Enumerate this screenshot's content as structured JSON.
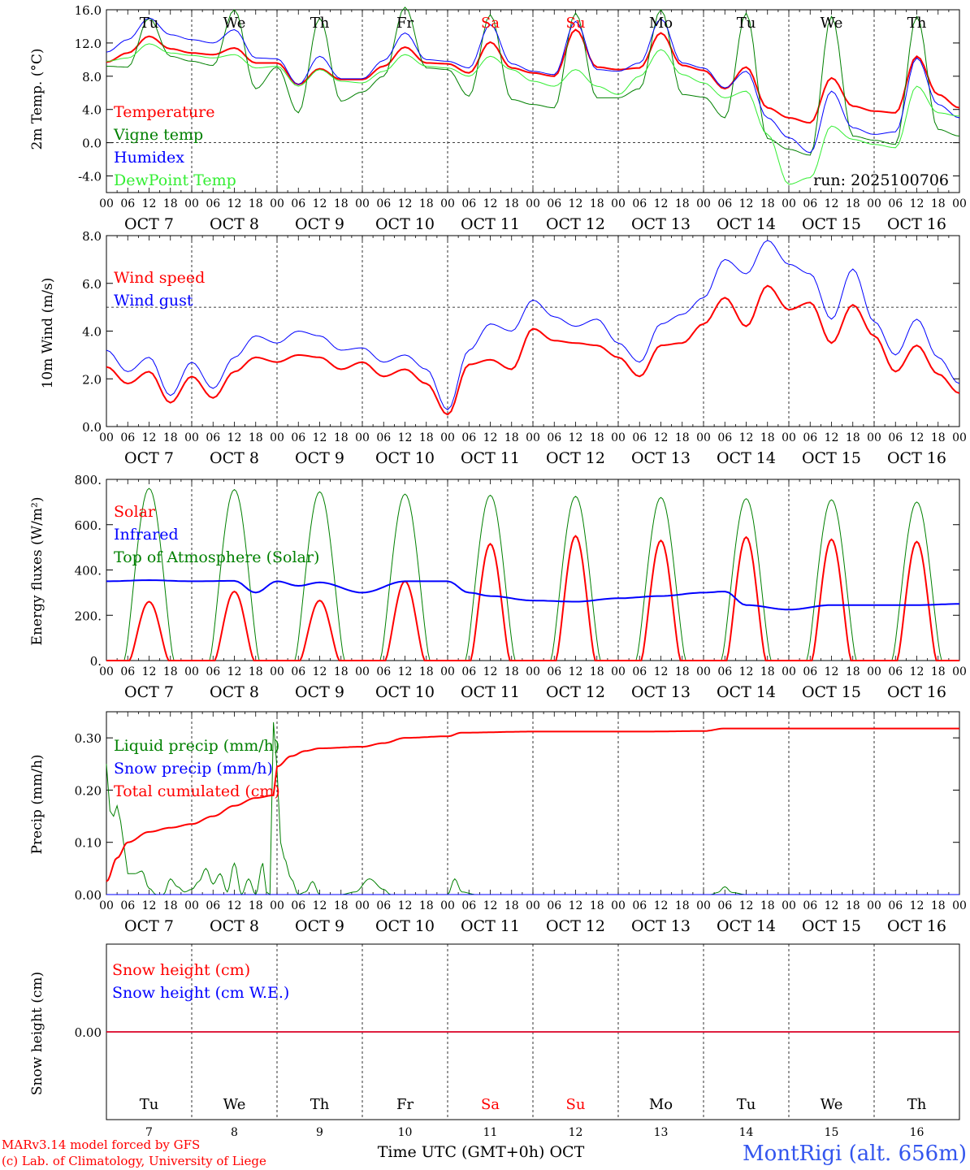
{
  "run_label": "run: 2025100706",
  "footer": {
    "model_line": "MARv3.14 model forced by GFS",
    "lab_line": "(c) Lab. of Climatology, University of Liege",
    "station": "MontRigi (alt. 656m)",
    "xaxis_title": "Time UTC (GMT+0h) OCT"
  },
  "colors": {
    "red": "#ff0000",
    "green": "#008000",
    "blue": "#0000ff",
    "lightgreen": "#33ee33",
    "station": "#3355ee"
  },
  "chart_data": [
    {
      "type": "line",
      "title": "2m Temperature",
      "ylabel": "2m Temp. (°C)",
      "ylim": [
        -6,
        16
      ],
      "yticks": [
        "-4.0",
        "0.0",
        "4.0",
        "8.0",
        "12.0",
        "16.0"
      ],
      "yticks_values": [
        -4,
        0,
        4,
        8,
        12,
        16
      ],
      "hline": 0,
      "legend": [
        "Temperature",
        "Vigne temp",
        "Humidex",
        "DewPoint Temp"
      ],
      "day_labels": [
        "Tu",
        "We",
        "Th",
        "Fr",
        "Sa",
        "Su",
        "Mo",
        "Tu",
        "We",
        "Th"
      ],
      "day_label_colors": [
        "#000000",
        "#000000",
        "#000000",
        "#000000",
        "#ff0000",
        "#ff0000",
        "#000000",
        "#000000",
        "#000000",
        "#000000"
      ],
      "series": [
        {
          "name": "Temperature",
          "color": "#ff0000",
          "x": [
            0,
            6,
            12,
            18,
            24,
            30,
            36,
            42,
            48,
            54,
            60,
            66,
            72,
            78,
            84,
            90,
            96,
            102,
            108,
            114,
            120,
            126,
            132,
            138,
            144,
            150,
            156,
            162,
            168,
            174,
            180,
            186,
            192,
            198,
            204,
            210,
            216,
            222,
            228,
            234,
            240
          ],
          "values": [
            9.7,
            10.8,
            12.8,
            11.3,
            10.8,
            10.6,
            11.4,
            9.6,
            9.6,
            7.0,
            8.9,
            7.6,
            7.6,
            9.2,
            11.5,
            9.6,
            9.5,
            8.4,
            12.1,
            9.0,
            8.4,
            8.0,
            13.6,
            9.1,
            8.8,
            9.0,
            13.2,
            9.3,
            8.7,
            6.5,
            9.1,
            4.2,
            3.0,
            2.4,
            7.8,
            4.4,
            3.8,
            3.6,
            10.4,
            5.8,
            4.2
          ],
          "width": 2
        },
        {
          "name": "Vigne temp",
          "color": "#008000",
          "x": [
            0,
            6,
            12,
            18,
            24,
            30,
            36,
            42,
            48,
            54,
            60,
            66,
            72,
            78,
            84,
            90,
            96,
            102,
            108,
            114,
            120,
            126,
            132,
            138,
            144,
            150,
            156,
            162,
            168,
            174,
            180,
            186,
            192,
            198,
            204,
            210,
            216,
            222,
            228,
            234,
            240
          ],
          "values": [
            9.2,
            9.1,
            15.0,
            10.4,
            9.8,
            9.3,
            16.0,
            6.5,
            9.1,
            3.6,
            15.0,
            5.0,
            6.1,
            8.0,
            16.3,
            9.0,
            8.8,
            5.6,
            15.4,
            5.2,
            4.6,
            4.2,
            15.6,
            5.4,
            5.4,
            6.5,
            16.0,
            5.8,
            5.5,
            3.0,
            15.6,
            0.5,
            -0.8,
            -1.5,
            15.2,
            0.8,
            0.3,
            -0.2,
            15.2,
            1.6,
            0.8
          ],
          "width": 1
        },
        {
          "name": "Humidex",
          "color": "#0000ff",
          "x": [
            0,
            6,
            12,
            18,
            24,
            30,
            36,
            42,
            48,
            54,
            60,
            66,
            72,
            78,
            84,
            90,
            96,
            102,
            108,
            114,
            120,
            126,
            132,
            138,
            144,
            150,
            156,
            162,
            168,
            174,
            180,
            186,
            192,
            198,
            204,
            210,
            216,
            222,
            228,
            234,
            240
          ],
          "values": [
            10.9,
            12.4,
            15.0,
            13.0,
            12.4,
            12.0,
            13.6,
            10.2,
            10.1,
            7.0,
            10.4,
            7.7,
            7.7,
            9.9,
            13.2,
            10.0,
            9.8,
            9.0,
            14.2,
            9.5,
            8.6,
            8.2,
            14.6,
            8.8,
            8.6,
            9.6,
            14.9,
            9.6,
            9.0,
            6.6,
            8.6,
            3.0,
            0.6,
            -1.2,
            6.2,
            1.8,
            1.0,
            1.3,
            10.2,
            4.6,
            3.0
          ],
          "width": 1
        },
        {
          "name": "DewPoint Temp",
          "color": "#33ee33",
          "x": [
            0,
            6,
            12,
            18,
            24,
            30,
            36,
            42,
            48,
            54,
            60,
            66,
            72,
            78,
            84,
            90,
            96,
            102,
            108,
            114,
            120,
            126,
            132,
            138,
            144,
            150,
            156,
            162,
            168,
            174,
            180,
            186,
            192,
            198,
            204,
            210,
            216,
            222,
            228,
            234,
            240
          ],
          "values": [
            9.8,
            10.2,
            11.9,
            10.8,
            10.5,
            10.2,
            10.6,
            9.0,
            9.2,
            6.8,
            8.8,
            7.4,
            7.2,
            8.6,
            10.6,
            9.2,
            9.0,
            8.0,
            10.4,
            8.8,
            7.4,
            6.8,
            8.8,
            6.8,
            5.8,
            8.0,
            11.2,
            8.2,
            7.2,
            5.4,
            6.2,
            1.0,
            -5.0,
            -4.2,
            2.0,
            0.4,
            -0.2,
            -0.6,
            6.8,
            3.6,
            3.2
          ],
          "width": 1
        }
      ]
    },
    {
      "type": "line",
      "title": "10m Wind",
      "ylabel": "10m Wind (m/s)",
      "ylim": [
        0,
        8
      ],
      "yticks": [
        "0.0",
        "2.0",
        "4.0",
        "6.0",
        "8.0"
      ],
      "yticks_values": [
        0,
        2,
        4,
        6,
        8
      ],
      "hline": 5,
      "legend": [
        "Wind speed",
        "Wind gust"
      ],
      "series": [
        {
          "name": "Wind speed",
          "color": "#ff0000",
          "x": [
            0,
            6,
            12,
            18,
            24,
            30,
            36,
            42,
            48,
            54,
            60,
            66,
            72,
            78,
            84,
            90,
            96,
            102,
            108,
            114,
            120,
            126,
            132,
            138,
            144,
            150,
            156,
            162,
            168,
            174,
            180,
            186,
            192,
            198,
            204,
            210,
            216,
            222,
            228,
            234,
            240
          ],
          "values": [
            2.5,
            1.8,
            2.3,
            1.0,
            2.1,
            1.2,
            2.3,
            2.9,
            2.7,
            3.0,
            2.9,
            2.4,
            2.7,
            2.1,
            2.4,
            1.8,
            0.5,
            2.6,
            2.8,
            2.4,
            4.1,
            3.6,
            3.5,
            3.4,
            2.9,
            2.1,
            3.4,
            3.5,
            4.3,
            5.4,
            4.2,
            5.9,
            4.9,
            5.2,
            3.5,
            5.1,
            3.8,
            2.3,
            3.4,
            2.2,
            1.4
          ],
          "width": 2
        },
        {
          "name": "Wind gust",
          "color": "#0000ff",
          "x": [
            0,
            6,
            12,
            18,
            24,
            30,
            36,
            42,
            48,
            54,
            60,
            66,
            72,
            78,
            84,
            90,
            96,
            102,
            108,
            114,
            120,
            126,
            132,
            138,
            144,
            150,
            156,
            162,
            168,
            174,
            180,
            186,
            192,
            198,
            204,
            210,
            216,
            222,
            228,
            234,
            240
          ],
          "values": [
            3.2,
            2.3,
            2.9,
            1.3,
            2.7,
            1.6,
            2.9,
            3.8,
            3.5,
            4.0,
            3.8,
            3.2,
            3.3,
            2.7,
            3.0,
            2.4,
            0.7,
            3.2,
            4.3,
            4.0,
            5.3,
            4.6,
            4.2,
            4.5,
            3.5,
            2.7,
            4.3,
            4.7,
            5.4,
            7.0,
            6.4,
            7.8,
            6.8,
            6.4,
            4.5,
            6.6,
            4.4,
            3.0,
            4.5,
            2.9,
            1.8
          ],
          "width": 1
        }
      ]
    },
    {
      "type": "line",
      "title": "Energy fluxes",
      "ylabel": "Energy fluxes (W/m²)",
      "ylim": [
        0,
        800
      ],
      "yticks": [
        "0.",
        "200.",
        "400.",
        "600.",
        "800."
      ],
      "yticks_values": [
        0,
        200,
        400,
        600,
        800
      ],
      "legend": [
        "Solar",
        "Infrared",
        "Top of Atmosphere (Solar)"
      ],
      "solar_peaks": [
        260,
        305,
        265,
        350,
        515,
        550,
        530,
        545,
        535,
        525
      ],
      "toa_peaks": [
        760,
        755,
        745,
        735,
        730,
        725,
        720,
        715,
        710,
        700
      ],
      "infrared": {
        "x": [
          0,
          12,
          24,
          36,
          42,
          48,
          54,
          60,
          72,
          84,
          96,
          102,
          108,
          120,
          132,
          144,
          156,
          168,
          174,
          180,
          192,
          204,
          216,
          228,
          240
        ],
        "values": [
          350,
          355,
          350,
          352,
          300,
          350,
          330,
          345,
          300,
          350,
          350,
          300,
          285,
          265,
          260,
          275,
          285,
          300,
          305,
          245,
          225,
          245,
          245,
          245,
          250
        ]
      },
      "series": [
        {
          "name": "Solar",
          "color": "#ff0000",
          "width": 2
        },
        {
          "name": "Infrared",
          "color": "#0000ff",
          "width": 2
        },
        {
          "name": "Top of Atmosphere (Solar)",
          "color": "#008000",
          "width": 1
        }
      ]
    },
    {
      "type": "line",
      "title": "Precipitation",
      "ylabel": "Precip (mm/h)",
      "ylim": [
        0,
        0.35
      ],
      "yticks": [
        "0.00",
        "0.10",
        "0.20",
        "0.30"
      ],
      "yticks_values": [
        0,
        0.1,
        0.2,
        0.3
      ],
      "legend": [
        "Liquid precip (mm/h)",
        "Snow precip (mm/h)",
        "Total cumulated (cm)"
      ],
      "series": [
        {
          "name": "Liquid precip (mm/h)",
          "color": "#008000",
          "x": [
            0,
            1,
            2,
            3,
            4,
            5,
            6,
            8,
            10,
            12,
            14,
            16,
            18,
            20,
            22,
            24,
            26,
            28,
            30,
            32,
            34,
            36,
            38,
            40,
            42,
            44,
            45,
            46,
            47,
            48,
            49,
            50,
            52,
            54,
            56,
            58,
            60,
            62,
            66,
            70,
            74,
            78,
            80,
            84,
            88,
            92,
            96,
            98,
            100,
            104,
            120,
            150,
            170,
            172,
            174,
            176,
            180,
            240
          ],
          "values": [
            0.25,
            0.16,
            0.15,
            0.17,
            0.14,
            0.09,
            0.04,
            0.04,
            0.045,
            0.012,
            0.0,
            0.0,
            0.03,
            0.015,
            0.005,
            0.01,
            0.025,
            0.05,
            0.02,
            0.04,
            0.005,
            0.06,
            0.0,
            0.03,
            0.0,
            0.06,
            0.005,
            0.0,
            0.33,
            0.24,
            0.1,
            0.07,
            0.03,
            0.0,
            0.005,
            0.025,
            0.0,
            0.0,
            0.0,
            0.005,
            0.03,
            0.01,
            0.0,
            0.0,
            0.0,
            0.0,
            0.0,
            0.03,
            0.005,
            0.0,
            0.0,
            0.0,
            0.0,
            0.004,
            0.015,
            0.004,
            0.0,
            0.0
          ],
          "width": 1
        },
        {
          "name": "Snow precip (mm/h)",
          "color": "#0000ff",
          "x": [
            0,
            240
          ],
          "values": [
            0.0,
            0.0
          ],
          "width": 1
        },
        {
          "name": "Total cumulated (cm)",
          "color": "#ff0000",
          "x": [
            0,
            3,
            6,
            12,
            18,
            24,
            30,
            36,
            42,
            47,
            48,
            52,
            56,
            60,
            72,
            78,
            84,
            96,
            100,
            120,
            150,
            168,
            174,
            240
          ],
          "values": [
            0.025,
            0.07,
            0.1,
            0.12,
            0.128,
            0.135,
            0.15,
            0.17,
            0.185,
            0.19,
            0.245,
            0.265,
            0.275,
            0.28,
            0.283,
            0.29,
            0.3,
            0.303,
            0.31,
            0.312,
            0.312,
            0.313,
            0.318,
            0.318
          ],
          "width": 2
        }
      ]
    },
    {
      "type": "line",
      "title": "Snow height",
      "ylabel": "Snow height (cm)",
      "yticks": [
        "0.00"
      ],
      "yticks_values": [
        0
      ],
      "legend": [
        "Snow height (cm)",
        "Snow height (cm W.E.)"
      ],
      "series": [
        {
          "name": "Snow height (cm)",
          "color": "#ff0000",
          "x": [
            0,
            240
          ],
          "values": [
            0,
            0
          ],
          "width": 1
        },
        {
          "name": "Snow height (cm W.E.)",
          "color": "#0000ff",
          "x": [
            0,
            240
          ],
          "values": [
            0,
            0
          ],
          "width": 1
        }
      ],
      "day_labels": [
        "Tu",
        "We",
        "Th",
        "Fr",
        "Sa",
        "Su",
        "Mo",
        "Tu",
        "We",
        "Th"
      ],
      "day_label_colors": [
        "#000000",
        "#000000",
        "#000000",
        "#000000",
        "#ff0000",
        "#ff0000",
        "#000000",
        "#000000",
        "#000000",
        "#000000"
      ],
      "day_numbers": [
        "7",
        "8",
        "9",
        "10",
        "11",
        "12",
        "13",
        "14",
        "15",
        "16"
      ]
    }
  ],
  "x_axis": {
    "hour_labels": [
      "00",
      "06",
      "12",
      "18"
    ],
    "final_hour_label": "00",
    "date_labels": [
      "OCT  7",
      "OCT  8",
      "OCT  9",
      "OCT 10",
      "OCT 11",
      "OCT 12",
      "OCT 13",
      "OCT 14",
      "OCT 15",
      "OCT 16"
    ],
    "range_hours": [
      0,
      240
    ]
  }
}
